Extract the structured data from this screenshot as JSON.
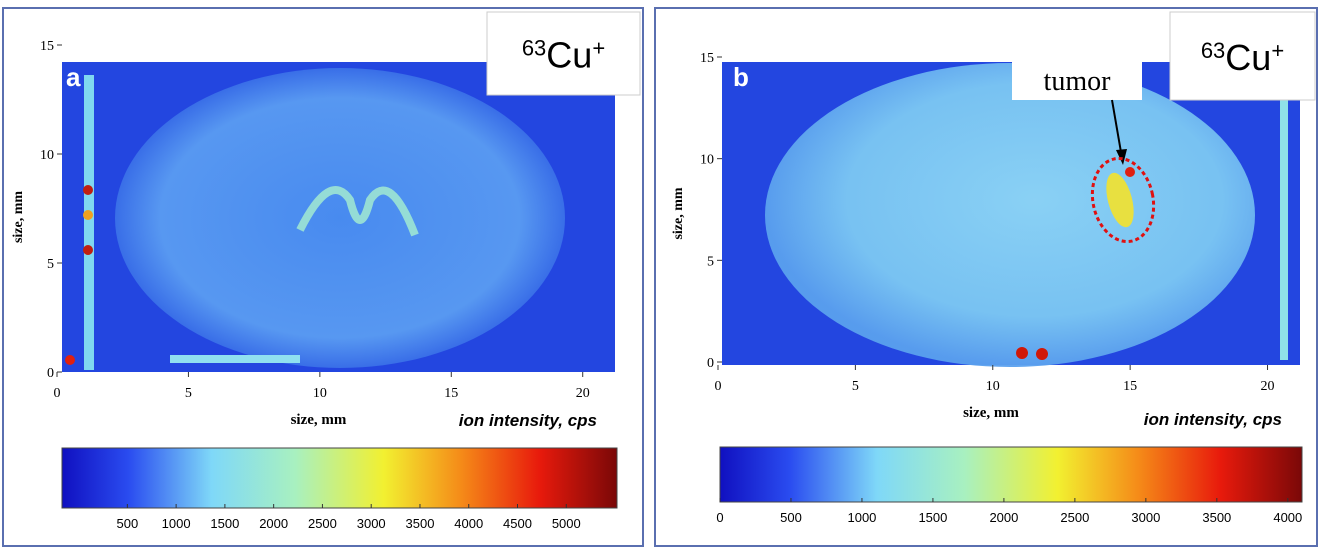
{
  "panels": [
    {
      "letter": "a",
      "isotope": {
        "mass": "63",
        "element": "Cu",
        "charge": "+"
      },
      "x_label": "size, mm",
      "y_label": "size, mm",
      "xlim": [
        0,
        21
      ],
      "ylim": [
        0,
        15
      ],
      "xticks": [
        0,
        5,
        10,
        15,
        20
      ],
      "yticks": [
        0,
        5,
        10,
        15
      ],
      "colorbar": {
        "title": "ion intensity, cps",
        "lim": [
          -170,
          5520
        ],
        "ticks": [
          500,
          1000,
          1500,
          2000,
          2500,
          3000,
          3500,
          4000,
          4500,
          5000
        ]
      }
    },
    {
      "letter": "b",
      "isotope": {
        "mass": "63",
        "element": "Cu",
        "charge": "+"
      },
      "x_label": "size, mm",
      "y_label": "size, mm",
      "annotation": "tumor",
      "xlim": [
        0,
        21
      ],
      "ylim": [
        0,
        15
      ],
      "xticks": [
        0,
        5,
        10,
        15,
        20
      ],
      "yticks": [
        0,
        5,
        10,
        15
      ],
      "colorbar": {
        "title": "ion intensity, cps",
        "lim": [
          0,
          4100
        ],
        "ticks": [
          0,
          500,
          1000,
          1500,
          2000,
          2500,
          3000,
          3500,
          4000
        ]
      }
    }
  ]
}
